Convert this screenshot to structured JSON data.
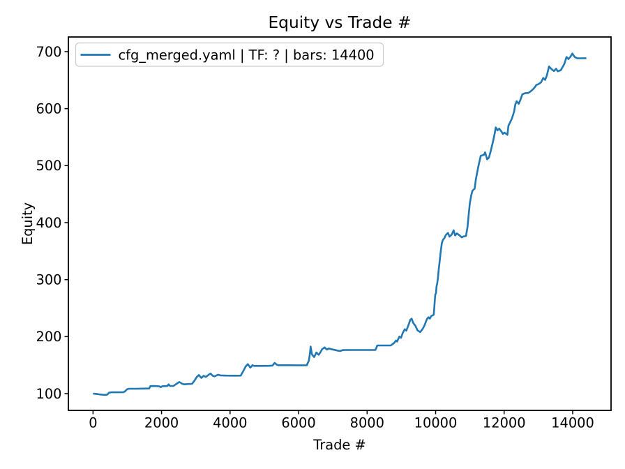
{
  "window": {
    "background": "#ffffff"
  },
  "colors": {
    "line": "#1f77b4",
    "text": "#000000",
    "spine": "#000000",
    "legend_border": "#cccccc",
    "legend_background": "#ffffff",
    "background": "#ffffff"
  },
  "chart_data": {
    "type": "line",
    "title": "Equity vs Trade #",
    "xlabel": "Trade #",
    "ylabel": "Equity",
    "xlim": [
      -720,
      15120
    ],
    "ylim": [
      70.6,
      725.7
    ],
    "xticks": [
      0,
      2000,
      4000,
      6000,
      8000,
      10000,
      12000,
      14000
    ],
    "yticks": [
      100,
      200,
      300,
      400,
      500,
      600,
      700
    ],
    "grid": false,
    "legend": {
      "position": "upper left",
      "entries": [
        {
          "label": "cfg_merged.yaml | TF: ? | bars: 14400",
          "color": "#1f77b4"
        }
      ]
    },
    "series": [
      {
        "name": "cfg_merged.yaml | TF: ? | bars: 14400",
        "color": "#1f77b4",
        "points": [
          [
            0,
            100
          ],
          [
            60,
            99.6
          ],
          [
            130,
            99.2
          ],
          [
            200,
            98.5
          ],
          [
            280,
            98
          ],
          [
            360,
            97.8
          ],
          [
            420,
            98.4
          ],
          [
            460,
            101.5
          ],
          [
            520,
            102.3
          ],
          [
            700,
            102.3
          ],
          [
            890,
            102.6
          ],
          [
            935,
            104
          ],
          [
            990,
            107.5
          ],
          [
            1050,
            108.6
          ],
          [
            1250,
            108.6
          ],
          [
            1470,
            108.8
          ],
          [
            1640,
            109
          ],
          [
            1675,
            113.2
          ],
          [
            1800,
            113.3
          ],
          [
            1935,
            112.8
          ],
          [
            1975,
            111.2
          ],
          [
            2020,
            113
          ],
          [
            2170,
            113.3
          ],
          [
            2205,
            116.3
          ],
          [
            2245,
            113.6
          ],
          [
            2350,
            113.5
          ],
          [
            2420,
            116.5
          ],
          [
            2480,
            118.8
          ],
          [
            2520,
            120.4
          ],
          [
            2590,
            117.6
          ],
          [
            2655,
            116.3
          ],
          [
            2780,
            116.9
          ],
          [
            2890,
            117.1
          ],
          [
            2960,
            122.5
          ],
          [
            3030,
            129.4
          ],
          [
            3090,
            132.5
          ],
          [
            3160,
            127.5
          ],
          [
            3230,
            131.2
          ],
          [
            3290,
            129.2
          ],
          [
            3370,
            132.8
          ],
          [
            3430,
            135.2
          ],
          [
            3490,
            131.5
          ],
          [
            3545,
            130.2
          ],
          [
            3650,
            133.2
          ],
          [
            3720,
            131.9
          ],
          [
            3900,
            131.6
          ],
          [
            4150,
            131.5
          ],
          [
            4310,
            131.6
          ],
          [
            4390,
            140.2
          ],
          [
            4450,
            147
          ],
          [
            4485,
            149.8
          ],
          [
            4520,
            151.8
          ],
          [
            4590,
            145.7
          ],
          [
            4655,
            149.8
          ],
          [
            4700,
            148.6
          ],
          [
            4900,
            148.6
          ],
          [
            5130,
            148.7
          ],
          [
            5240,
            149.2
          ],
          [
            5300,
            153.9
          ],
          [
            5360,
            151
          ],
          [
            5405,
            149.8
          ],
          [
            5700,
            149.8
          ],
          [
            6000,
            149.7
          ],
          [
            6240,
            149.8
          ],
          [
            6300,
            158
          ],
          [
            6335,
            172
          ],
          [
            6352,
            182.5
          ],
          [
            6390,
            169
          ],
          [
            6425,
            166.1
          ],
          [
            6455,
            164.1
          ],
          [
            6520,
            172.2
          ],
          [
            6560,
            169.5
          ],
          [
            6590,
            168.2
          ],
          [
            6650,
            174
          ],
          [
            6690,
            178.3
          ],
          [
            6725,
            179.5
          ],
          [
            6760,
            181.2
          ],
          [
            6800,
            178.5
          ],
          [
            6830,
            177.3
          ],
          [
            6880,
            179.2
          ],
          [
            6950,
            178
          ],
          [
            7050,
            176.8
          ],
          [
            7150,
            175.3
          ],
          [
            7210,
            174.7
          ],
          [
            7290,
            176.4
          ],
          [
            7500,
            176.5
          ],
          [
            7800,
            176.5
          ],
          [
            8100,
            176.5
          ],
          [
            8240,
            176.6
          ],
          [
            8265,
            179.5
          ],
          [
            8295,
            184.5
          ],
          [
            8500,
            184.5
          ],
          [
            8690,
            184.6
          ],
          [
            8740,
            186.5
          ],
          [
            8790,
            189
          ],
          [
            8840,
            193
          ],
          [
            8875,
            191.5
          ],
          [
            8940,
            200
          ],
          [
            8990,
            198
          ],
          [
            9040,
            206.5
          ],
          [
            9100,
            213
          ],
          [
            9145,
            210.5
          ],
          [
            9200,
            219
          ],
          [
            9260,
            229.5
          ],
          [
            9300,
            231.5
          ],
          [
            9345,
            224
          ],
          [
            9410,
            219
          ],
          [
            9470,
            211
          ],
          [
            9550,
            208
          ],
          [
            9620,
            213.5
          ],
          [
            9670,
            219
          ],
          [
            9715,
            226
          ],
          [
            9750,
            231
          ],
          [
            9790,
            234
          ],
          [
            9830,
            231.5
          ],
          [
            9870,
            236
          ],
          [
            9915,
            237.5
          ],
          [
            9945,
            238.5
          ],
          [
            9960,
            251
          ],
          [
            9975,
            263
          ],
          [
            9990,
            273.5
          ],
          [
            10010,
            276
          ],
          [
            10025,
            288
          ],
          [
            10045,
            293
          ],
          [
            10065,
            301
          ],
          [
            10090,
            317
          ],
          [
            10120,
            333.5
          ],
          [
            10150,
            350
          ],
          [
            10180,
            364
          ],
          [
            10215,
            370
          ],
          [
            10255,
            372.5
          ],
          [
            10295,
            378
          ],
          [
            10360,
            382
          ],
          [
            10405,
            375.5
          ],
          [
            10470,
            379
          ],
          [
            10525,
            386.5
          ],
          [
            10570,
            377.5
          ],
          [
            10620,
            381
          ],
          [
            10680,
            378.5
          ],
          [
            10760,
            374.3
          ],
          [
            10830,
            376
          ],
          [
            10885,
            376.5
          ],
          [
            10930,
            392
          ],
          [
            10965,
            414
          ],
          [
            11000,
            434.5
          ],
          [
            11040,
            448
          ],
          [
            11075,
            456
          ],
          [
            11140,
            459.8
          ],
          [
            11175,
            476
          ],
          [
            11240,
            496.5
          ],
          [
            11280,
            507.5
          ],
          [
            11315,
            517
          ],
          [
            11410,
            519
          ],
          [
            11445,
            523.3
          ],
          [
            11505,
            511
          ],
          [
            11555,
            514
          ],
          [
            11605,
            525
          ],
          [
            11680,
            543.5
          ],
          [
            11725,
            557
          ],
          [
            11755,
            567
          ],
          [
            11805,
            562
          ],
          [
            11855,
            565
          ],
          [
            11920,
            560
          ],
          [
            11965,
            555.5
          ],
          [
            12005,
            558
          ],
          [
            12055,
            556
          ],
          [
            12095,
            554
          ],
          [
            12125,
            570
          ],
          [
            12165,
            575
          ],
          [
            12225,
            582.4
          ],
          [
            12290,
            594.5
          ],
          [
            12325,
            607
          ],
          [
            12365,
            613
          ],
          [
            12425,
            608.5
          ],
          [
            12475,
            615.5
          ],
          [
            12530,
            625
          ],
          [
            12610,
            627
          ],
          [
            12705,
            627.5
          ],
          [
            12765,
            630
          ],
          [
            12835,
            633.5
          ],
          [
            12900,
            638
          ],
          [
            12940,
            641.6
          ],
          [
            13005,
            643.2
          ],
          [
            13075,
            646
          ],
          [
            13140,
            653.8
          ],
          [
            13195,
            650.5
          ],
          [
            13245,
            658
          ],
          [
            13310,
            674
          ],
          [
            13365,
            670.5
          ],
          [
            13405,
            668
          ],
          [
            13455,
            666
          ],
          [
            13515,
            670
          ],
          [
            13565,
            665.5
          ],
          [
            13655,
            667.5
          ],
          [
            13755,
            678.3
          ],
          [
            13820,
            690.6
          ],
          [
            13875,
            687
          ],
          [
            13935,
            691
          ],
          [
            13990,
            696.7
          ],
          [
            14060,
            690.6
          ],
          [
            14125,
            688.5
          ],
          [
            14250,
            688.4
          ],
          [
            14400,
            688.5
          ]
        ]
      }
    ]
  }
}
